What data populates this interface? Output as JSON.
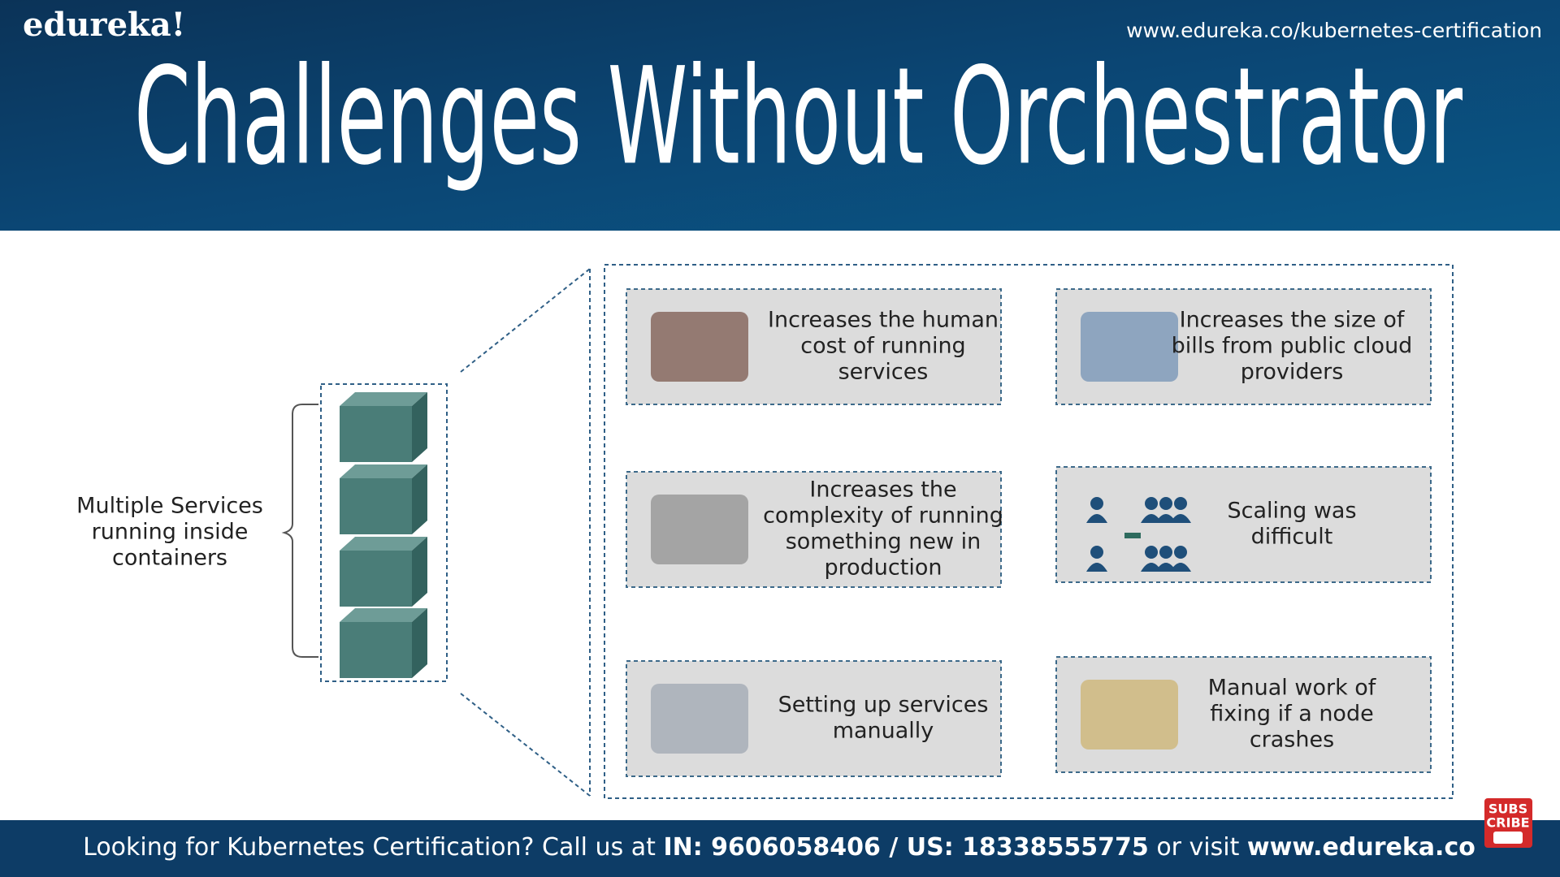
{
  "header": {
    "logo": "edureka!",
    "url": "www.edureka.co/kubernetes-certification",
    "title": "Challenges Without Orchestrator"
  },
  "left": {
    "lines": [
      "Multiple Services",
      "running inside",
      "containers"
    ]
  },
  "cards": [
    {
      "lines": [
        "Increases the human",
        "cost of running",
        "services"
      ]
    },
    {
      "lines": [
        "Increases the size of",
        "bills from public cloud",
        "providers"
      ]
    },
    {
      "lines": [
        "Increases the",
        "complexity of running",
        "something new in",
        "production"
      ]
    },
    {
      "lines": [
        "Scaling was",
        "difficult"
      ]
    },
    {
      "lines": [
        "Setting up services",
        "manually"
      ]
    },
    {
      "lines": [
        "Manual work of",
        "fixing if a node",
        "crashes"
      ]
    }
  ],
  "footer": {
    "prefix": "Looking for Kubernetes Certification? Call us at",
    "phone": "IN: 9606058406 / US: 18338555775",
    "middle": "or visit",
    "site": "www.edureka.co"
  },
  "badge": {
    "lines": [
      "SUBS",
      "CRIBE"
    ]
  }
}
